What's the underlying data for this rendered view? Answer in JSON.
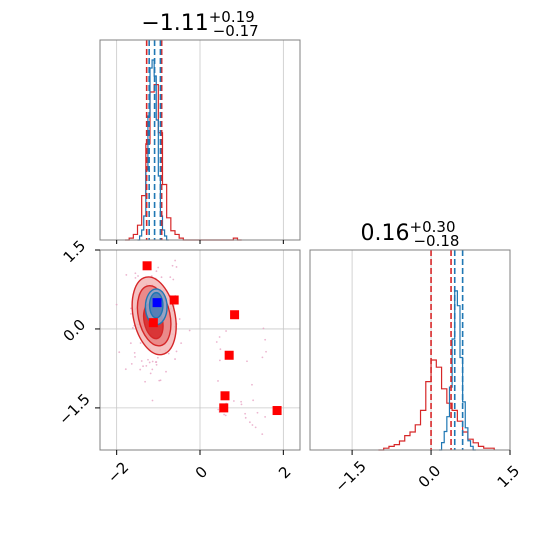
{
  "chart_data": {
    "type": "corner",
    "title_1": {
      "base": "−1.11",
      "sup": "+0.19",
      "sub": "−0.17"
    },
    "title_2": {
      "base": "0.16",
      "sup": "+0.30",
      "sub": "−0.18"
    },
    "colors": {
      "red": "#d62728",
      "blue": "#1f77b4",
      "marker_red": "#ff0000",
      "marker_blue": "#0000ff",
      "grid": "#c8c8c8",
      "frame": "#808080",
      "pink_points": "#e7a3c3"
    },
    "x_param1": {
      "range": [
        -2.4,
        2.4
      ],
      "ticks": [
        -2,
        0,
        2
      ],
      "tick_labels": [
        "−2",
        "0",
        "2"
      ]
    },
    "y_param2": {
      "range": [
        -2.3,
        1.5
      ],
      "ticks": [
        1.5,
        0.0,
        -1.5
      ],
      "tick_labels": [
        "1.5",
        "0.0",
        "−1.5"
      ]
    },
    "x_param2": {
      "range": [
        -2.3,
        1.5
      ],
      "ticks": [
        -1.5,
        0.0,
        1.5
      ],
      "tick_labels": [
        "−1.5",
        "0.0",
        "1.5"
      ]
    },
    "hist_param1": {
      "dashed_red": [
        -1.28,
        -0.92
      ],
      "dashed_blue": [
        -1.22,
        -1.09,
        -0.95
      ],
      "grid_x": [
        -2,
        0,
        2
      ],
      "blue_bins": [
        -1.5,
        -1.45,
        -1.4,
        -1.35,
        -1.3,
        -1.25,
        -1.2,
        -1.15,
        -1.1,
        -1.05,
        -1.0,
        -0.95,
        -0.9,
        -0.85,
        -0.8,
        -0.75
      ],
      "blue_counts": [
        0.0,
        0.02,
        0.05,
        0.12,
        0.35,
        0.62,
        0.86,
        0.9,
        0.82,
        0.6,
        0.32,
        0.12,
        0.05,
        0.02,
        0.0
      ],
      "red_bins": [
        -1.8,
        -1.7,
        -1.6,
        -1.5,
        -1.4,
        -1.3,
        -1.2,
        -1.1,
        -1.0,
        -0.9,
        -0.8,
        -0.7,
        -0.6,
        -0.5,
        -0.4,
        -0.3,
        -0.2,
        -0.1,
        0.0,
        0.1,
        0.2,
        0.3,
        0.4,
        0.5,
        0.6,
        0.7,
        0.8,
        0.9,
        1.0
      ],
      "red_counts": [
        0.0,
        0.01,
        0.03,
        0.08,
        0.24,
        0.52,
        0.8,
        0.84,
        0.58,
        0.3,
        0.12,
        0.05,
        0.03,
        0.01,
        0.0,
        0.0,
        0.0,
        0.0,
        0.0,
        0.0,
        0.0,
        0.0,
        0.0,
        0.0,
        0.0,
        0.0,
        0.01,
        0.0
      ]
    },
    "hist_param2": {
      "dashed_red": [
        0.0,
        0.38
      ],
      "dashed_blue": [
        0.45,
        0.6
      ],
      "grid_x": [
        -1.5,
        0.0,
        1.5
      ],
      "blue_bins": [
        0.15,
        0.2,
        0.25,
        0.3,
        0.35,
        0.4,
        0.45,
        0.5,
        0.55,
        0.6,
        0.65,
        0.7,
        0.75,
        0.8,
        0.85
      ],
      "blue_counts": [
        0.0,
        0.04,
        0.1,
        0.18,
        0.34,
        0.6,
        0.86,
        0.78,
        0.5,
        0.26,
        0.12,
        0.05,
        0.02,
        0.0
      ],
      "red_bins": [
        -1.0,
        -0.9,
        -0.8,
        -0.7,
        -0.6,
        -0.5,
        -0.4,
        -0.3,
        -0.2,
        -0.1,
        0.0,
        0.1,
        0.2,
        0.3,
        0.4,
        0.5,
        0.6,
        0.7,
        0.8,
        0.9,
        1.0,
        1.1,
        1.2
      ],
      "red_counts": [
        0.0,
        0.01,
        0.02,
        0.03,
        0.05,
        0.08,
        0.1,
        0.14,
        0.22,
        0.38,
        0.5,
        0.46,
        0.34,
        0.26,
        0.22,
        0.16,
        0.1,
        0.06,
        0.04,
        0.02,
        0.01,
        0.01
      ]
    },
    "scatter": {
      "grid_x": [
        -2,
        0,
        2
      ],
      "grid_y": [
        1.5,
        0.0,
        -1.5
      ],
      "red_squares": [
        {
          "x": -1.27,
          "y": 1.2
        },
        {
          "x": -0.62,
          "y": 0.55
        },
        {
          "x": -1.12,
          "y": 0.12
        },
        {
          "x": 0.83,
          "y": 0.27
        },
        {
          "x": 0.7,
          "y": -0.5
        },
        {
          "x": 0.6,
          "y": -1.27
        },
        {
          "x": 0.57,
          "y": -1.5
        },
        {
          "x": 1.85,
          "y": -1.55
        }
      ],
      "blue_square": {
        "x": -1.03,
        "y": 0.5
      },
      "red_contours": [
        {
          "cx": -1.1,
          "cy": 0.25,
          "rx": 0.5,
          "ry": 0.75,
          "level": 0.39
        },
        {
          "cx": -1.1,
          "cy": 0.25,
          "rx": 0.38,
          "ry": 0.58,
          "level": 0.68
        },
        {
          "cx": -1.12,
          "cy": 0.15,
          "rx": 0.22,
          "ry": 0.34,
          "level": 0.95
        }
      ],
      "blue_contours": [
        {
          "cx": -1.05,
          "cy": 0.42,
          "rx": 0.26,
          "ry": 0.34,
          "level": 0.39
        },
        {
          "cx": -1.05,
          "cy": 0.45,
          "rx": 0.16,
          "ry": 0.24,
          "level": 0.68
        }
      ]
    }
  }
}
